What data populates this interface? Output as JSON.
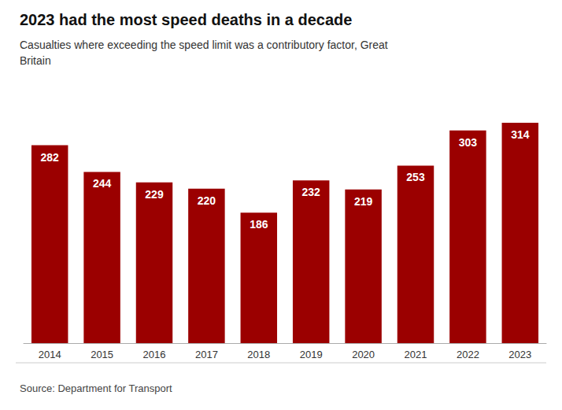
{
  "chart_data": {
    "type": "bar",
    "title": "2023 had the most speed deaths in a decade",
    "subtitle": "Casualties where exceeding the speed limit was a contributory factor, Great\nBritain",
    "source": "Source: Department for Transport",
    "categories": [
      "2014",
      "2015",
      "2016",
      "2017",
      "2018",
      "2019",
      "2020",
      "2021",
      "2022",
      "2023"
    ],
    "values": [
      282,
      244,
      229,
      220,
      186,
      232,
      219,
      253,
      303,
      314
    ],
    "color": "#9b0000",
    "ylim": [
      0,
      360
    ],
    "grid": false,
    "data_labels": true,
    "tick_labels": "x"
  }
}
